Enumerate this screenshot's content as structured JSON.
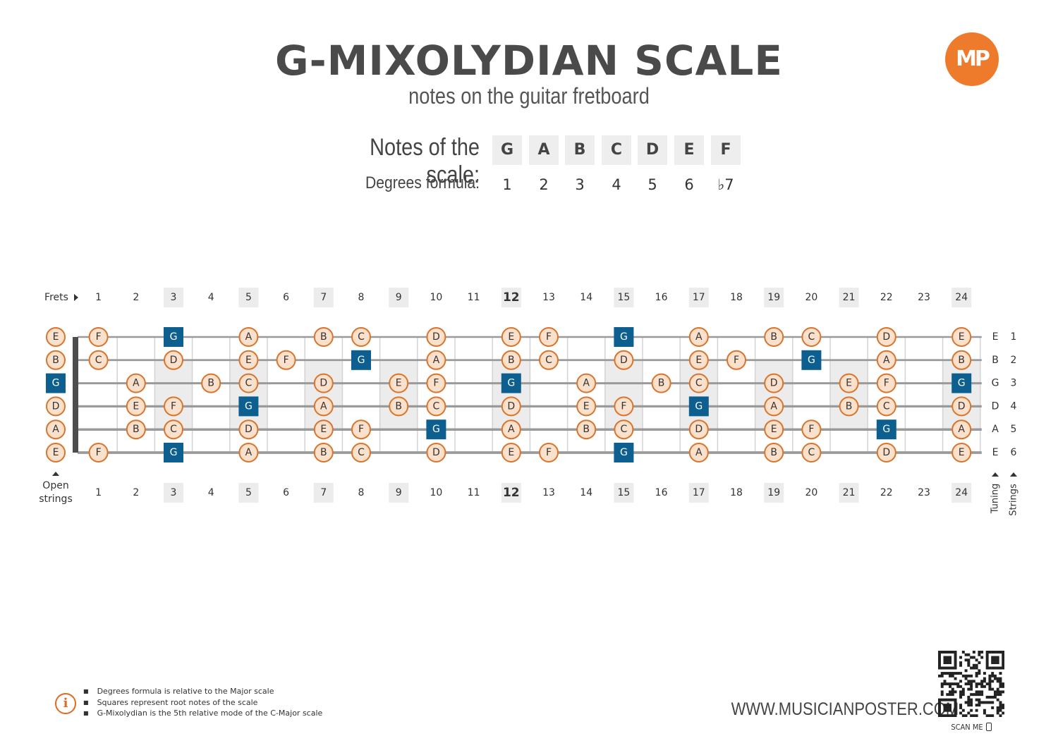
{
  "title": "G-MIXOLYDIAN SCALE",
  "subtitle": "notes on the guitar fretboard",
  "logo_text": "MP",
  "scale": {
    "notes_label": "Notes of the scale:",
    "degrees_label": "Degrees formula:",
    "notes": [
      "G",
      "A",
      "B",
      "C",
      "D",
      "E",
      "F"
    ],
    "degrees": [
      "1",
      "2",
      "3",
      "4",
      "5",
      "6",
      "♭7"
    ]
  },
  "fretboard": {
    "frets_label": "Frets",
    "open_strings_label": [
      "Open",
      "strings"
    ],
    "tuning_label": "Tuning",
    "strings_label": "Strings",
    "fret_numbers": [
      "1",
      "2",
      "3",
      "4",
      "5",
      "6",
      "7",
      "8",
      "9",
      "10",
      "11",
      "12",
      "13",
      "14",
      "15",
      "16",
      "17",
      "18",
      "19",
      "20",
      "21",
      "22",
      "23",
      "24"
    ],
    "marked_frets": [
      3,
      5,
      7,
      9,
      12,
      15,
      17,
      19,
      21,
      24
    ],
    "root_note": "G",
    "tuning": [
      {
        "note": "E",
        "string": "1"
      },
      {
        "note": "B",
        "string": "2"
      },
      {
        "note": "G",
        "string": "3"
      },
      {
        "note": "D",
        "string": "4"
      },
      {
        "note": "A",
        "string": "5"
      },
      {
        "note": "E",
        "string": "6"
      }
    ],
    "strings": [
      {
        "open": "E",
        "notes": [
          [
            1,
            "F"
          ],
          [
            3,
            "G"
          ],
          [
            5,
            "A"
          ],
          [
            7,
            "B"
          ],
          [
            8,
            "C"
          ],
          [
            10,
            "D"
          ],
          [
            12,
            "E"
          ],
          [
            13,
            "F"
          ],
          [
            15,
            "G"
          ],
          [
            17,
            "A"
          ],
          [
            19,
            "B"
          ],
          [
            20,
            "C"
          ],
          [
            22,
            "D"
          ],
          [
            24,
            "E"
          ]
        ]
      },
      {
        "open": "B",
        "notes": [
          [
            1,
            "C"
          ],
          [
            3,
            "D"
          ],
          [
            5,
            "E"
          ],
          [
            6,
            "F"
          ],
          [
            8,
            "G"
          ],
          [
            10,
            "A"
          ],
          [
            12,
            "B"
          ],
          [
            13,
            "C"
          ],
          [
            15,
            "D"
          ],
          [
            17,
            "E"
          ],
          [
            18,
            "F"
          ],
          [
            20,
            "G"
          ],
          [
            22,
            "A"
          ],
          [
            24,
            "B"
          ]
        ]
      },
      {
        "open": "G",
        "notes": [
          [
            2,
            "A"
          ],
          [
            4,
            "B"
          ],
          [
            5,
            "C"
          ],
          [
            7,
            "D"
          ],
          [
            9,
            "E"
          ],
          [
            10,
            "F"
          ],
          [
            12,
            "G"
          ],
          [
            14,
            "A"
          ],
          [
            16,
            "B"
          ],
          [
            17,
            "C"
          ],
          [
            19,
            "D"
          ],
          [
            21,
            "E"
          ],
          [
            22,
            "F"
          ],
          [
            24,
            "G"
          ]
        ]
      },
      {
        "open": "D",
        "notes": [
          [
            2,
            "E"
          ],
          [
            3,
            "F"
          ],
          [
            5,
            "G"
          ],
          [
            7,
            "A"
          ],
          [
            9,
            "B"
          ],
          [
            10,
            "C"
          ],
          [
            12,
            "D"
          ],
          [
            14,
            "E"
          ],
          [
            15,
            "F"
          ],
          [
            17,
            "G"
          ],
          [
            19,
            "A"
          ],
          [
            21,
            "B"
          ],
          [
            22,
            "C"
          ],
          [
            24,
            "D"
          ]
        ]
      },
      {
        "open": "A",
        "notes": [
          [
            2,
            "B"
          ],
          [
            3,
            "C"
          ],
          [
            5,
            "D"
          ],
          [
            7,
            "E"
          ],
          [
            8,
            "F"
          ],
          [
            10,
            "G"
          ],
          [
            12,
            "A"
          ],
          [
            14,
            "B"
          ],
          [
            15,
            "C"
          ],
          [
            17,
            "D"
          ],
          [
            19,
            "E"
          ],
          [
            20,
            "F"
          ],
          [
            22,
            "G"
          ],
          [
            24,
            "A"
          ]
        ]
      },
      {
        "open": "E",
        "notes": [
          [
            1,
            "F"
          ],
          [
            3,
            "G"
          ],
          [
            5,
            "A"
          ],
          [
            7,
            "B"
          ],
          [
            8,
            "C"
          ],
          [
            10,
            "D"
          ],
          [
            12,
            "E"
          ],
          [
            13,
            "F"
          ],
          [
            15,
            "G"
          ],
          [
            17,
            "A"
          ],
          [
            19,
            "B"
          ],
          [
            20,
            "C"
          ],
          [
            22,
            "D"
          ],
          [
            24,
            "E"
          ]
        ]
      }
    ]
  },
  "footer": {
    "info_icon": "info-icon",
    "notes": [
      "Degrees formula is relative to the Major scale",
      "Squares represent root notes of the scale",
      "G-Mixolydian is the 5th relative mode of the C-Major scale"
    ],
    "website": "WWW.MUSICIANPOSTER.COM",
    "scan_me": "SCAN ME"
  },
  "colors": {
    "note_fill": "#fbe1cc",
    "note_stroke": "#d9742c",
    "root_fill": "#0c5f8f",
    "marker_bg": "#ececec",
    "string": "#9a9a9a",
    "nut": "#4d4d4d",
    "accent": "#ee7a2b"
  }
}
